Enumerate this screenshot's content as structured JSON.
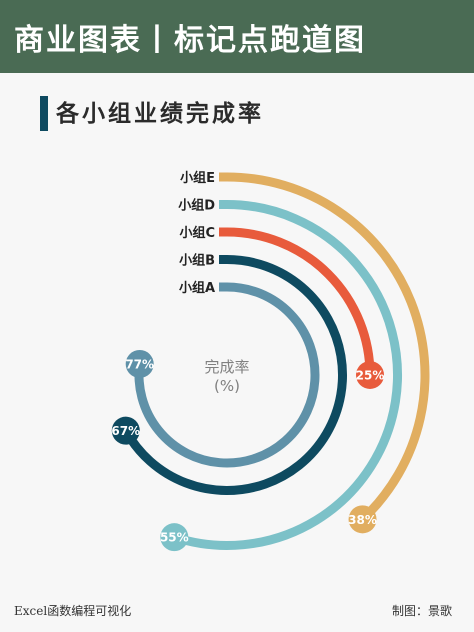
{
  "header": {
    "title": "商业图表丨标记点跑道图"
  },
  "subtitle": "各小组业绩完成率",
  "center_label": {
    "line1": "完成率",
    "line2": "(%)"
  },
  "footer": {
    "left": "Excel函数编程可视化",
    "right": "制图：景歌"
  },
  "chart_data": {
    "type": "radial-bar",
    "title": "各小组业绩完成率",
    "unit": "%",
    "series": [
      {
        "category": "小组E",
        "value": 38,
        "color": "#e1ae60"
      },
      {
        "category": "小组D",
        "value": 55,
        "color": "#7cc1c8"
      },
      {
        "category": "小组C",
        "value": 25,
        "color": "#e85b3c"
      },
      {
        "category": "小组B",
        "value": 67,
        "color": "#0e4a60"
      },
      {
        "category": "小组A",
        "value": 77,
        "color": "#5f91a8"
      }
    ],
    "max_value": 100
  }
}
